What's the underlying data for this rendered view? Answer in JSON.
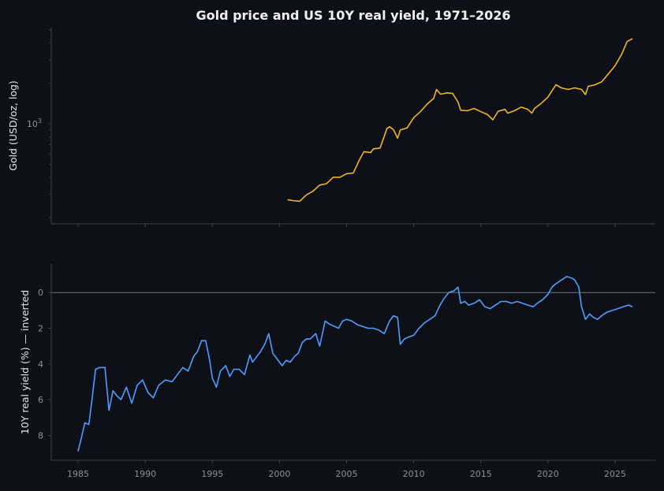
{
  "colors": {
    "background": "#0d1117",
    "axis": "#3a3f47",
    "tick_text": "#8b919a",
    "label_text": "#e6e6e6",
    "gold": "#f0b429",
    "yield": "#4f9dff",
    "zero_line": "#6e737b"
  },
  "chart_data": [
    {
      "type": "line",
      "title": "Gold price and US 10Y real yield, 1971–2026",
      "ylabel": "Gold (USD/oz, log)",
      "yscale": "log",
      "ylim": [
        180,
        5200
      ],
      "xlim": [
        1983.0,
        2028.0
      ],
      "yticks": [
        {
          "value": 1000,
          "label": "10",
          "sup": "3"
        }
      ],
      "grid": false,
      "series": [
        {
          "name": "",
          "x": [
            2000.6,
            2001.0,
            2001.5,
            2002.0,
            2002.5,
            2003.0,
            2003.5,
            2004.0,
            2004.5,
            2005.0,
            2005.5,
            2006.0,
            2006.3,
            2006.8,
            2007.0,
            2007.5,
            2008.0,
            2008.2,
            2008.5,
            2008.8,
            2009.0,
            2009.5,
            2010.0,
            2010.5,
            2011.0,
            2011.5,
            2011.7,
            2012.0,
            2012.5,
            2012.9,
            2013.3,
            2013.5,
            2014.0,
            2014.5,
            2015.0,
            2015.5,
            2015.9,
            2016.3,
            2016.8,
            2017.0,
            2017.5,
            2018.0,
            2018.5,
            2018.8,
            2019.0,
            2019.5,
            2020.0,
            2020.6,
            2021.0,
            2021.5,
            2022.0,
            2022.5,
            2022.8,
            2023.0,
            2023.5,
            2024.0,
            2024.5,
            2025.0,
            2025.5,
            2025.9,
            2026.3
          ],
          "y": [
            272,
            268,
            265,
            295,
            315,
            350,
            358,
            400,
            400,
            425,
            430,
            550,
            620,
            610,
            650,
            660,
            920,
            950,
            900,
            780,
            900,
            930,
            1110,
            1230,
            1400,
            1550,
            1800,
            1660,
            1700,
            1680,
            1450,
            1260,
            1250,
            1300,
            1230,
            1170,
            1070,
            1240,
            1280,
            1200,
            1250,
            1330,
            1280,
            1200,
            1300,
            1420,
            1580,
            1950,
            1850,
            1800,
            1850,
            1800,
            1650,
            1900,
            1950,
            2050,
            2350,
            2700,
            3300,
            4100,
            4300
          ]
        }
      ]
    },
    {
      "type": "line",
      "ylabel": "10Y real yield (%) — inverted",
      "ylim": [
        9.4,
        -1.6
      ],
      "xlim": [
        1983.0,
        2028.0
      ],
      "yticks": [
        0,
        2,
        4,
        6,
        8
      ],
      "xticks": [
        1985,
        1990,
        1995,
        2000,
        2005,
        2010,
        2015,
        2020,
        2025
      ],
      "reference_line": 0,
      "grid": false,
      "series": [
        {
          "name": "",
          "x": [
            1985.0,
            1985.2,
            1985.5,
            1985.8,
            1986.0,
            1986.3,
            1986.6,
            1987.0,
            1987.3,
            1987.6,
            1987.9,
            1988.2,
            1988.6,
            1989.0,
            1989.4,
            1989.8,
            1990.2,
            1990.6,
            1991.0,
            1991.5,
            1992.0,
            1992.4,
            1992.8,
            1993.2,
            1993.6,
            1993.9,
            1994.2,
            1994.5,
            1994.8,
            1995.0,
            1995.3,
            1995.6,
            1996.0,
            1996.3,
            1996.6,
            1997.0,
            1997.4,
            1997.8,
            1998.0,
            1998.3,
            1998.6,
            1998.9,
            1999.2,
            1999.5,
            1999.8,
            2000.2,
            2000.5,
            2000.8,
            2001.1,
            2001.4,
            2001.7,
            2002.0,
            2002.3,
            2002.7,
            2003.0,
            2003.4,
            2003.8,
            2004.1,
            2004.4,
            2004.7,
            2005.0,
            2005.4,
            2005.8,
            2006.2,
            2006.6,
            2007.0,
            2007.4,
            2007.8,
            2008.2,
            2008.5,
            2008.8,
            2009.0,
            2009.3,
            2009.6,
            2010.0,
            2010.4,
            2010.8,
            2011.2,
            2011.6,
            2011.9,
            2012.2,
            2012.6,
            2013.0,
            2013.3,
            2013.5,
            2013.8,
            2014.1,
            2014.5,
            2014.9,
            2015.3,
            2015.7,
            2016.1,
            2016.5,
            2016.9,
            2017.3,
            2017.7,
            2018.1,
            2018.5,
            2018.9,
            2019.2,
            2019.6,
            2020.0,
            2020.3,
            2020.6,
            2021.0,
            2021.4,
            2021.8,
            2022.0,
            2022.3,
            2022.5,
            2022.8,
            2023.1,
            2023.4,
            2023.7,
            2024.0,
            2024.4,
            2024.8,
            2025.2,
            2025.6,
            2026.0,
            2026.3
          ],
          "y": [
            8.9,
            8.3,
            7.3,
            7.4,
            6.2,
            4.3,
            4.2,
            4.2,
            6.6,
            5.5,
            5.8,
            6.0,
            5.3,
            6.2,
            5.2,
            4.9,
            5.6,
            5.9,
            5.2,
            4.9,
            5.0,
            4.6,
            4.2,
            4.4,
            3.6,
            3.3,
            2.7,
            2.7,
            3.8,
            4.8,
            5.3,
            4.4,
            4.1,
            4.7,
            4.3,
            4.3,
            4.6,
            3.5,
            3.9,
            3.6,
            3.3,
            2.9,
            2.3,
            3.4,
            3.7,
            4.1,
            3.8,
            3.9,
            3.6,
            3.4,
            2.8,
            2.6,
            2.6,
            2.3,
            3.0,
            1.6,
            1.8,
            1.9,
            2.0,
            1.6,
            1.5,
            1.6,
            1.8,
            1.9,
            2.0,
            2.0,
            2.1,
            2.3,
            1.6,
            1.3,
            1.4,
            2.9,
            2.6,
            2.5,
            2.4,
            2.0,
            1.7,
            1.5,
            1.3,
            0.8,
            0.4,
            0.0,
            -0.1,
            -0.3,
            0.6,
            0.5,
            0.7,
            0.6,
            0.4,
            0.8,
            0.9,
            0.7,
            0.5,
            0.5,
            0.6,
            0.5,
            0.6,
            0.7,
            0.8,
            0.6,
            0.4,
            0.1,
            -0.3,
            -0.5,
            -0.7,
            -0.9,
            -0.8,
            -0.7,
            -0.3,
            0.8,
            1.5,
            1.2,
            1.4,
            1.5,
            1.3,
            1.1,
            1.0,
            0.9,
            0.8,
            0.7,
            0.8
          ]
        }
      ]
    }
  ]
}
